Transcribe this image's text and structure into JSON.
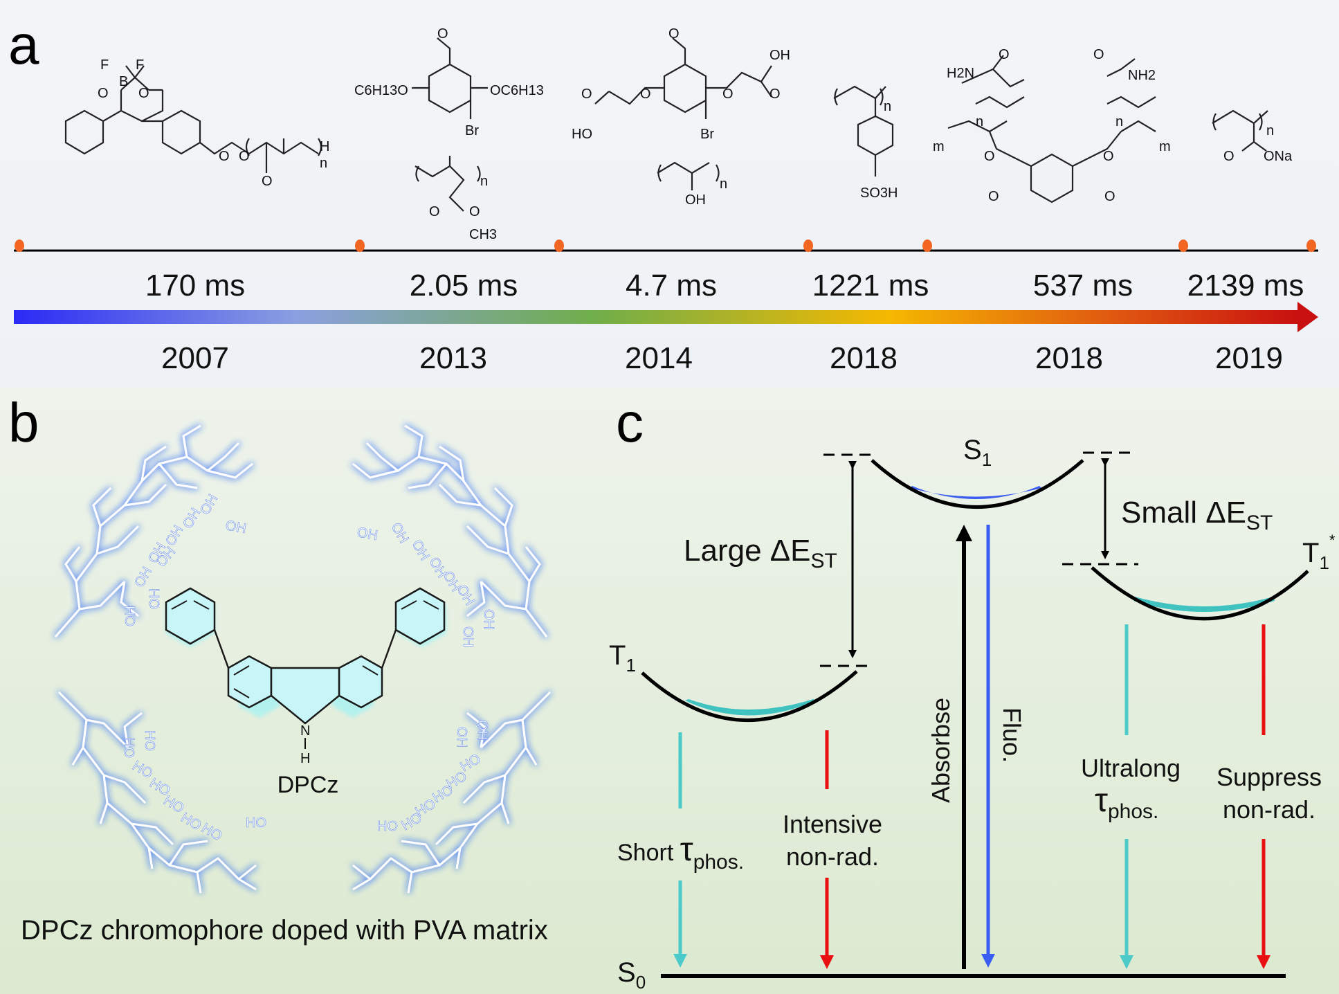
{
  "panels": {
    "a": {
      "letter": "a",
      "compound_labels": [
        {
          "atoms": [
            "F",
            "F",
            "B",
            "O",
            "O",
            "O",
            "O",
            "O",
            "H",
            "n"
          ]
        },
        {
          "atoms": [
            "O",
            "C6H13O",
            "OC6H13",
            "Br",
            "n",
            "O",
            "O",
            "CH3"
          ]
        },
        {
          "atoms": [
            "O",
            "OH",
            "O",
            "O",
            "O",
            "O",
            "HO",
            "Br",
            "n",
            "OH"
          ]
        },
        {
          "atoms": [
            "n",
            "SO3H"
          ]
        },
        {
          "atoms": [
            "H2N",
            "O",
            "O",
            "NH2",
            "n",
            "n",
            "m",
            "m",
            "O",
            "O",
            "O",
            "O"
          ]
        },
        {
          "atoms": [
            "n",
            "O",
            "ONa"
          ]
        }
      ],
      "lifetimes": [
        "170 ms",
        "2.05 ms",
        "4.7 ms",
        "1221 ms",
        "537 ms",
        "2139 ms"
      ],
      "years": [
        "2007",
        "2013",
        "2014",
        "2018",
        "2018",
        "2019"
      ],
      "dot_color": "#f26522",
      "gradient_colors": [
        "#2a2af5",
        "#8aa0e0",
        "#6fae4a",
        "#f5b800",
        "#e05a10",
        "#c81010"
      ]
    },
    "b": {
      "letter": "b",
      "molecule_label": "DPCz",
      "nh_label": "N",
      "h_label": "H",
      "caption": "DPCz chromophore doped with PVA matrix",
      "oh_label": "OH",
      "ho_label": "HO",
      "glow_color": "#4a7ef5",
      "fill_color": "#c8f6f8"
    },
    "c": {
      "letter": "c",
      "s1": "S",
      "s1_sub": "1",
      "t1": "T",
      "t1_sub": "1",
      "t1star": "T",
      "t1star_sub": "1",
      "t1star_sup": "*",
      "s0": "S",
      "s0_sub": "0",
      "large_gap": "Large ΔE",
      "large_gap_sub": "ST",
      "small_gap": "Small ΔE",
      "small_gap_sub": "ST",
      "absorb": "Absorbse",
      "fluo": "Fluo.",
      "short_word": "Short ",
      "tau": "τ",
      "phos_sub": "phos.",
      "intensive_1": "Intensive",
      "intensive_2": "non-rad.",
      "ultralong": "Ultralong",
      "suppress_1": "Suppress",
      "suppress_2": "non-rad.",
      "colors": {
        "cyan": "#4cc9c9",
        "red": "#e81010",
        "blue": "#3a5cf0",
        "s1_fill": "#3a5cf0",
        "t_fill": "#3fc2c0"
      }
    }
  }
}
